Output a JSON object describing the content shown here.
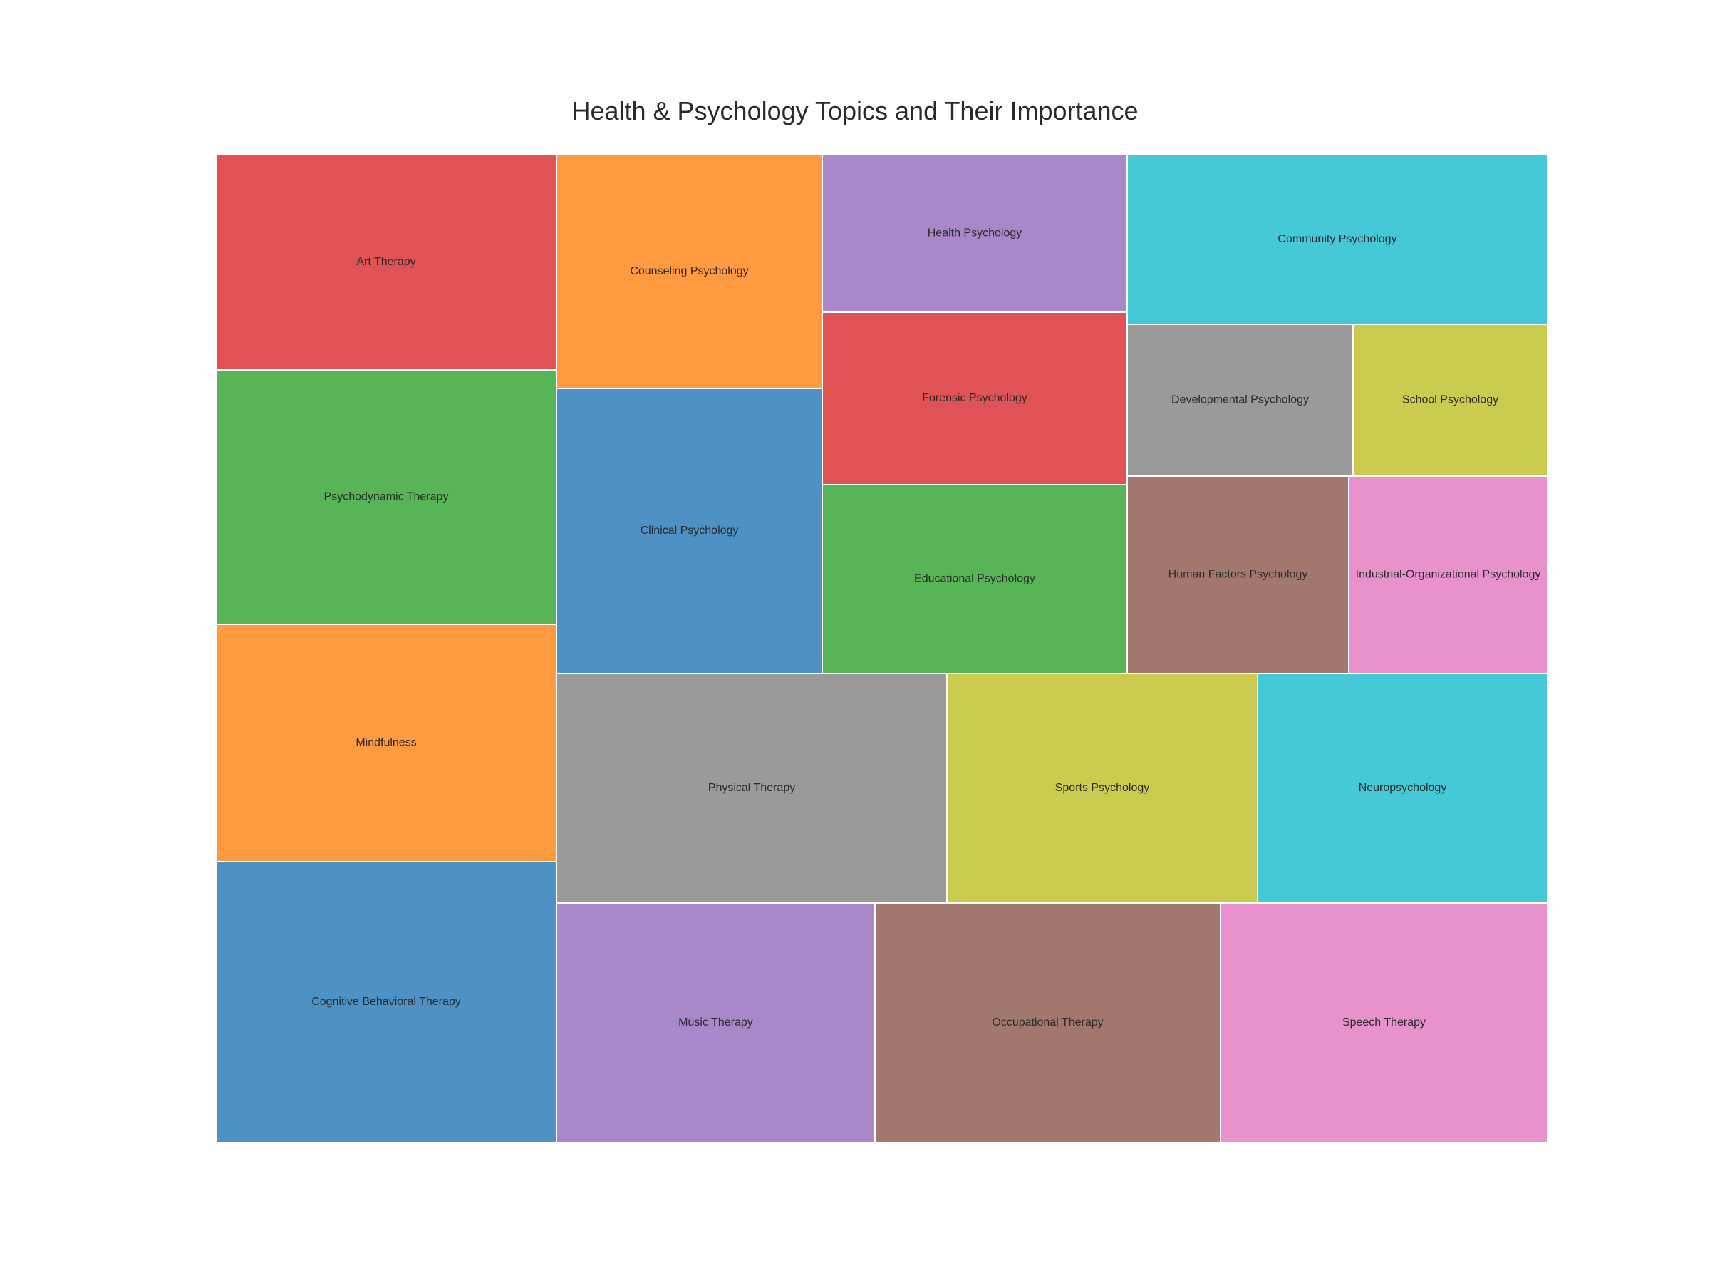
{
  "chart_data": {
    "type": "treemap",
    "title": "Health & Psychology Topics and Their Importance",
    "leaves": [
      {
        "name": "Cognitive Behavioral Therapy",
        "value": 95,
        "color": "#4e92c5"
      },
      {
        "name": "Mindfulness",
        "value": 82,
        "color": "#ff9a40"
      },
      {
        "name": "Psychodynamic Therapy",
        "value": 86,
        "color": "#57b557"
      },
      {
        "name": "Art Therapy",
        "value": 73,
        "color": "#e05255"
      },
      {
        "name": "Counseling Psychology",
        "value": 55,
        "color": "#ff9a40"
      },
      {
        "name": "Clinical Psychology",
        "value": 67,
        "color": "#4e92c5"
      },
      {
        "name": "Health Psychology",
        "value": 42,
        "color": "#a988c9"
      },
      {
        "name": "Forensic Psychology",
        "value": 46,
        "color": "#e05255"
      },
      {
        "name": "Educational Psychology",
        "value": 51,
        "color": "#57b557"
      },
      {
        "name": "Community Psychology",
        "value": 63,
        "color": "#46c9d6"
      },
      {
        "name": "Developmental Psychology",
        "value": 31,
        "color": "#9a9a9a"
      },
      {
        "name": "School Psychology",
        "value": 27,
        "color": "#cbcb50"
      },
      {
        "name": "Human Factors Psychology",
        "value": 38,
        "color": "#a2786e"
      },
      {
        "name": "Industrial-Organizational Psychology",
        "value": 35,
        "color": "#e891cb"
      },
      {
        "name": "Physical Therapy",
        "value": 80,
        "color": "#9a9a9a"
      },
      {
        "name": "Sports Psychology",
        "value": 64,
        "color": "#cbcb50"
      },
      {
        "name": "Neuropsychology",
        "value": 60,
        "color": "#46c9d6"
      },
      {
        "name": "Music Therapy",
        "value": 70,
        "color": "#a988c9"
      },
      {
        "name": "Occupational Therapy",
        "value": 76,
        "color": "#a2786e"
      },
      {
        "name": "Speech Therapy",
        "value": 72,
        "color": "#e891cb"
      }
    ]
  }
}
